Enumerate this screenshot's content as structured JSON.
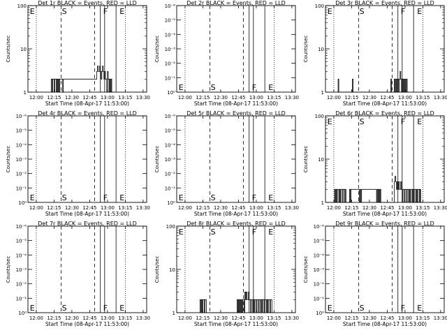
{
  "common": {
    "x_tick_labels": [
      "12:00",
      "12:15",
      "12:30",
      "12:45",
      "13:00",
      "13:15",
      "13:30"
    ],
    "xlabel": "Start Time (08-Apr-17 11:53:00)",
    "ylabel": "Counts/sec",
    "marker_letters": {
      "S": "S",
      "F": "F",
      "E": "E"
    }
  },
  "chart_data": [
    {
      "type": "line",
      "title": "Det 1r BLACK = Events, RED = LLD",
      "scale": "log",
      "xlim": [
        11.883,
        13.55
      ],
      "ylim": [
        1,
        100
      ],
      "y_tick_labels": [
        "1",
        "10",
        "100"
      ],
      "marker_lines": {
        "dotted": [
          12.0,
          13.25
        ],
        "dashed": [
          12.35,
          12.82
        ],
        "solid": [
          12.9,
          12.96,
          13.12
        ]
      },
      "marker_labels": [
        {
          "letter": "E",
          "x": 11.9,
          "pos": "top"
        },
        {
          "letter": "S",
          "x": 12.35,
          "pos": "top"
        },
        {
          "letter": "F",
          "x": 12.93,
          "pos": "top"
        },
        {
          "letter": "E",
          "x": 13.16,
          "pos": "top"
        }
      ],
      "series": [
        {
          "x": [
            12.2,
            12.21,
            12.22,
            12.23,
            12.24,
            12.25,
            12.26,
            12.27,
            12.28,
            12.29,
            12.3,
            12.31,
            12.32,
            12.33,
            12.34,
            12.36,
            12.37,
            12.38,
            12.39,
            12.85,
            12.86,
            12.87,
            12.88,
            12.89,
            12.9,
            12.91,
            12.92,
            12.93,
            12.94,
            12.95,
            12.96,
            12.97,
            12.98,
            12.99,
            13.0,
            13.01,
            13.02,
            13.03,
            13.04,
            13.05,
            13.06
          ],
          "y": [
            1,
            2,
            1,
            2,
            2,
            1,
            2,
            2,
            1,
            2,
            1,
            2,
            1,
            2,
            2,
            2,
            1,
            2,
            2,
            3,
            4,
            3,
            3,
            4,
            3,
            2,
            3,
            4,
            3,
            2,
            3,
            2,
            2,
            1,
            3,
            2,
            1,
            2,
            1,
            2,
            1
          ]
        }
      ]
    },
    {
      "type": "line",
      "title": "Det 2r BLACK = Events, RED = LLD",
      "scale": "exp",
      "xlim": [
        11.883,
        13.55
      ],
      "ylim": [
        0,
        6
      ],
      "y_tick_labels": [
        "10⁰",
        "10⁻¹",
        "10⁻²",
        "10⁻³",
        "10⁻⁴",
        "10⁻⁵",
        "10⁻⁶"
      ],
      "marker_lines": {
        "dotted": [
          12.0,
          13.25
        ],
        "dashed": [
          12.35,
          12.82
        ],
        "solid": [
          12.9,
          12.96,
          13.12
        ]
      },
      "marker_labels": [
        {
          "letter": "E",
          "x": 11.9,
          "pos": "bottom"
        },
        {
          "letter": "S",
          "x": 12.35,
          "pos": "bottom"
        },
        {
          "letter": "F",
          "x": 12.93,
          "pos": "bottom"
        },
        {
          "letter": "E",
          "x": 13.16,
          "pos": "bottom"
        }
      ],
      "series": []
    },
    {
      "type": "line",
      "title": "Det 3r BLACK = Events, RED = LLD",
      "scale": "log",
      "xlim": [
        11.883,
        13.55
      ],
      "ylim": [
        1,
        100
      ],
      "y_tick_labels": [
        "1",
        "10",
        "100"
      ],
      "marker_lines": {
        "dotted": [
          12.0,
          13.25
        ],
        "dashed": [
          12.35,
          12.82
        ],
        "solid": [
          12.9,
          12.96,
          13.12
        ]
      },
      "marker_labels": [
        {
          "letter": "E",
          "x": 11.9,
          "pos": "top"
        },
        {
          "letter": "S",
          "x": 12.35,
          "pos": "top"
        },
        {
          "letter": "F",
          "x": 12.93,
          "pos": "top"
        },
        {
          "letter": "E",
          "x": 13.16,
          "pos": "top"
        }
      ],
      "series": [
        {
          "x": [
            12.05,
            12.06,
            12.07,
            12.25,
            12.26,
            12.27,
            12.79,
            12.8,
            12.81,
            12.85,
            12.86,
            12.87,
            12.88,
            12.89,
            12.9,
            12.91,
            12.92,
            12.93,
            12.94,
            12.95,
            12.96,
            12.97,
            12.98,
            12.99,
            13.0,
            13.01,
            13.02,
            13.03,
            13.04
          ],
          "y": [
            1,
            2,
            1,
            1,
            2,
            1,
            1,
            2,
            1,
            2,
            1,
            2,
            1,
            2,
            2,
            1,
            2,
            3,
            2,
            1,
            2,
            1,
            2,
            1,
            2,
            1,
            2,
            1,
            1
          ]
        }
      ]
    },
    {
      "type": "line",
      "title": "Det 4r BLACK = Events, RED = LLD",
      "scale": "exp",
      "xlim": [
        11.883,
        13.55
      ],
      "ylim": [
        0,
        6
      ],
      "y_tick_labels": [
        "10⁰",
        "10⁻¹",
        "10⁻²",
        "10⁻³",
        "10⁻⁴",
        "10⁻⁵",
        "10⁻⁶"
      ],
      "marker_lines": {
        "dotted": [
          12.0,
          13.25
        ],
        "dashed": [
          12.35,
          12.82
        ],
        "solid": [
          12.9,
          12.96,
          13.12
        ]
      },
      "marker_labels": [
        {
          "letter": "E",
          "x": 11.9,
          "pos": "bottom"
        },
        {
          "letter": "S",
          "x": 12.35,
          "pos": "bottom"
        },
        {
          "letter": "F",
          "x": 12.93,
          "pos": "bottom"
        },
        {
          "letter": "E",
          "x": 13.16,
          "pos": "bottom"
        }
      ],
      "series": []
    },
    {
      "type": "line",
      "title": "Det 5r BLACK = Events, RED = LLD",
      "scale": "exp",
      "xlim": [
        11.883,
        13.55
      ],
      "ylim": [
        0,
        6
      ],
      "y_tick_labels": [
        "10⁰",
        "10⁻¹",
        "10⁻²",
        "10⁻³",
        "10⁻⁴",
        "10⁻⁵",
        "10⁻⁶"
      ],
      "marker_lines": {
        "dotted": [
          12.0,
          13.25
        ],
        "dashed": [
          12.35,
          12.82
        ],
        "solid": [
          12.9,
          12.96,
          13.12
        ]
      },
      "marker_labels": [
        {
          "letter": "E",
          "x": 11.9,
          "pos": "bottom"
        },
        {
          "letter": "S",
          "x": 12.35,
          "pos": "bottom"
        },
        {
          "letter": "F",
          "x": 12.93,
          "pos": "bottom"
        },
        {
          "letter": "E",
          "x": 13.16,
          "pos": "bottom"
        }
      ],
      "series": []
    },
    {
      "type": "line",
      "title": "Det 6r BLACK = Events, RED = LLD",
      "scale": "log",
      "xlim": [
        11.883,
        13.55
      ],
      "ylim": [
        1,
        100
      ],
      "y_tick_labels": [
        "1",
        "10",
        "100"
      ],
      "marker_lines": {
        "dotted": [
          12.0,
          13.25
        ],
        "dashed": [
          12.35,
          12.82
        ],
        "solid": [
          12.9,
          12.96,
          13.12
        ]
      },
      "marker_labels": [
        {
          "letter": "E",
          "x": 11.9,
          "pos": "top"
        },
        {
          "letter": "S",
          "x": 12.35,
          "pos": "top"
        },
        {
          "letter": "F",
          "x": 12.93,
          "pos": "top"
        },
        {
          "letter": "E",
          "x": 13.16,
          "pos": "top"
        }
      ],
      "series": [
        {
          "x": [
            12.0,
            12.01,
            12.02,
            12.03,
            12.04,
            12.05,
            12.06,
            12.07,
            12.08,
            12.09,
            12.1,
            12.11,
            12.12,
            12.13,
            12.14,
            12.15,
            12.16,
            12.17,
            12.21,
            12.22,
            12.23,
            12.24,
            12.36,
            12.37,
            12.38,
            12.39,
            12.6,
            12.61,
            12.62,
            12.63,
            12.64,
            12.65,
            12.66,
            12.85,
            12.86,
            12.87,
            12.88,
            12.89,
            12.9,
            12.91,
            12.92,
            12.93,
            12.94,
            12.95,
            12.96,
            12.97,
            12.98,
            12.99,
            13.0,
            13.01,
            13.02,
            13.03,
            13.04,
            13.05,
            13.06,
            13.07,
            13.08,
            13.09,
            13.1,
            13.11,
            13.12,
            13.13,
            13.14,
            13.15,
            13.16,
            13.17,
            13.18,
            13.19,
            13.2,
            13.21,
            13.22,
            13.23
          ],
          "y": [
            1,
            2,
            1,
            2,
            1,
            2,
            2,
            1,
            2,
            1,
            2,
            2,
            1,
            2,
            2,
            1,
            2,
            1,
            1,
            2,
            1,
            2,
            1,
            2,
            1,
            2,
            1,
            2,
            1,
            2,
            1,
            2,
            1,
            3,
            4,
            3,
            2,
            3,
            2,
            3,
            2,
            2,
            3,
            2,
            1,
            2,
            2,
            1,
            2,
            2,
            1,
            2,
            2,
            1,
            2,
            1,
            2,
            2,
            1,
            2,
            1,
            2,
            2,
            1,
            2,
            1,
            2,
            2,
            1,
            2,
            1,
            1
          ]
        }
      ]
    },
    {
      "type": "line",
      "title": "Det 7r BLACK = Events, RED = LLD",
      "scale": "exp",
      "xlim": [
        11.883,
        13.55
      ],
      "ylim": [
        0,
        6
      ],
      "y_tick_labels": [
        "10⁰",
        "10⁻¹",
        "10⁻²",
        "10⁻³",
        "10⁻⁴",
        "10⁻⁵",
        "10⁻⁶"
      ],
      "marker_lines": {
        "dotted": [
          12.0,
          13.25
        ],
        "dashed": [
          12.35,
          12.82
        ],
        "solid": [
          12.9,
          12.96,
          13.12
        ]
      },
      "marker_labels": [
        {
          "letter": "E",
          "x": 11.9,
          "pos": "bottom"
        },
        {
          "letter": "S",
          "x": 12.35,
          "pos": "bottom"
        },
        {
          "letter": "F",
          "x": 12.93,
          "pos": "bottom"
        },
        {
          "letter": "E",
          "x": 13.16,
          "pos": "bottom"
        }
      ],
      "series": []
    },
    {
      "type": "line",
      "title": "Det 8r BLACK = Events, RED = LLD",
      "scale": "log",
      "xlim": [
        11.883,
        13.55
      ],
      "ylim": [
        1,
        100
      ],
      "y_tick_labels": [
        "1",
        "10",
        "100"
      ],
      "marker_lines": {
        "dotted": [
          12.0,
          13.25
        ],
        "dashed": [
          12.35,
          12.82
        ],
        "solid": [
          12.9,
          12.96,
          13.12
        ]
      },
      "marker_labels": [
        {
          "letter": "E",
          "x": 11.9,
          "pos": "top"
        },
        {
          "letter": "S",
          "x": 12.35,
          "pos": "top"
        },
        {
          "letter": "F",
          "x": 12.93,
          "pos": "top"
        },
        {
          "letter": "E",
          "x": 13.16,
          "pos": "top"
        }
      ],
      "series": [
        {
          "x": [
            12.2,
            12.21,
            12.22,
            12.23,
            12.24,
            12.25,
            12.26,
            12.27,
            12.28,
            12.29,
            12.3,
            12.72,
            12.73,
            12.74,
            12.75,
            12.76,
            12.77,
            12.78,
            12.79,
            12.8,
            12.81,
            12.82,
            12.83,
            12.84,
            12.85,
            12.86,
            12.87,
            12.88,
            12.89,
            12.9,
            12.91,
            12.92,
            12.93,
            12.94,
            12.95,
            12.96,
            12.97,
            12.98,
            12.99,
            13.0,
            13.01,
            13.02,
            13.03,
            13.04,
            13.05,
            13.06,
            13.07,
            13.08,
            13.09,
            13.1,
            13.11,
            13.12,
            13.13,
            13.14,
            13.15,
            13.16,
            13.17,
            13.18,
            13.19,
            13.2,
            13.21,
            13.22
          ],
          "y": [
            1,
            2,
            1,
            2,
            1,
            2,
            2,
            1,
            2,
            2,
            1,
            1,
            2,
            1,
            2,
            1,
            2,
            1,
            2,
            1,
            2,
            2,
            1,
            3,
            2,
            3,
            2,
            2,
            3,
            2,
            2,
            1,
            2,
            2,
            1,
            2,
            1,
            2,
            2,
            1,
            2,
            2,
            1,
            2,
            2,
            1,
            2,
            1,
            2,
            2,
            1,
            2,
            2,
            1,
            2,
            1,
            2,
            2,
            1,
            2,
            2,
            1
          ]
        }
      ]
    },
    {
      "type": "line",
      "title": "Det 9r BLACK = Events, RED = LLD",
      "scale": "exp",
      "xlim": [
        11.883,
        13.55
      ],
      "ylim": [
        0,
        6
      ],
      "y_tick_labels": [
        "10⁰",
        "10⁻¹",
        "10⁻²",
        "10⁻³",
        "10⁻⁴",
        "10⁻⁵",
        "10⁻⁶"
      ],
      "marker_lines": {
        "dotted": [
          12.0,
          13.25
        ],
        "dashed": [
          12.35,
          12.82
        ],
        "solid": [
          12.9,
          12.96,
          13.12
        ]
      },
      "marker_labels": [
        {
          "letter": "E",
          "x": 11.9,
          "pos": "bottom"
        },
        {
          "letter": "S",
          "x": 12.35,
          "pos": "bottom"
        },
        {
          "letter": "F",
          "x": 12.93,
          "pos": "bottom"
        },
        {
          "letter": "E",
          "x": 13.16,
          "pos": "bottom"
        }
      ],
      "series": []
    }
  ]
}
